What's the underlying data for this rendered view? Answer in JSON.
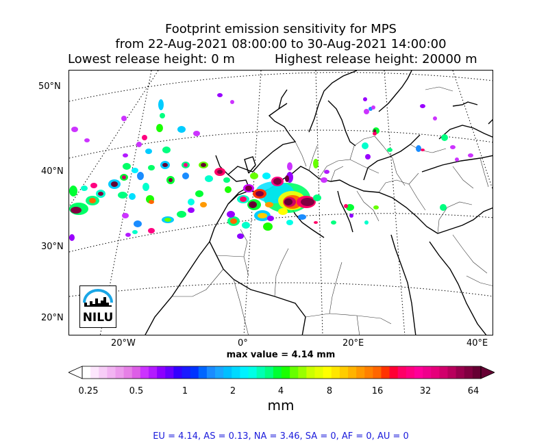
{
  "title": {
    "line1": "Footprint emission sensitivity for MPS",
    "line2": "from 22-Aug-2021 08:00:00 to 30-Aug-2021 14:00:00",
    "lowest": "Lowest release height: 0 m",
    "highest": "Highest release height: 20000 m"
  },
  "map": {
    "lat_labels": [
      "50°N",
      "40°N",
      "30°N",
      "20°N"
    ],
    "lon_labels": [
      "20°W",
      "0°",
      "20°E",
      "40°E"
    ],
    "logo_text": "NILU"
  },
  "max_value": "max value = 4.14 mm",
  "colorbar": {
    "ticks": [
      "0.25",
      "0.5",
      "1",
      "2",
      "4",
      "8",
      "16",
      "32",
      "64"
    ],
    "unit": "mm",
    "colors": [
      "#ffffff",
      "#fde6fd",
      "#f7cdf7",
      "#f2b4f2",
      "#ec9bec",
      "#e680e6",
      "#dd5ee6",
      "#cc33ff",
      "#b31aff",
      "#8c00ff",
      "#6600ff",
      "#3300ff",
      "#1a1aff",
      "#0033ff",
      "#0066ff",
      "#1a8cff",
      "#1aa6ff",
      "#00bfff",
      "#00d9ff",
      "#00f2ff",
      "#00ffe6",
      "#00ffb3",
      "#00ff80",
      "#00ff33",
      "#1aff00",
      "#66ff00",
      "#99ff00",
      "#ccff00",
      "#e6ff00",
      "#ffff00",
      "#ffe600",
      "#ffcc00",
      "#ffb300",
      "#ff9900",
      "#ff8000",
      "#ff6600",
      "#ff3300",
      "#ff0033",
      "#ff0066",
      "#ff0080",
      "#ff0099",
      "#f0008c",
      "#e6007a",
      "#d1006b",
      "#b8005c",
      "#99004d",
      "#800040",
      "#660033"
    ]
  },
  "stats": "EU = 4.14,  AS = 0.13,  NA = 3.46,  SA = 0,  AF = 0,  AU = 0"
}
